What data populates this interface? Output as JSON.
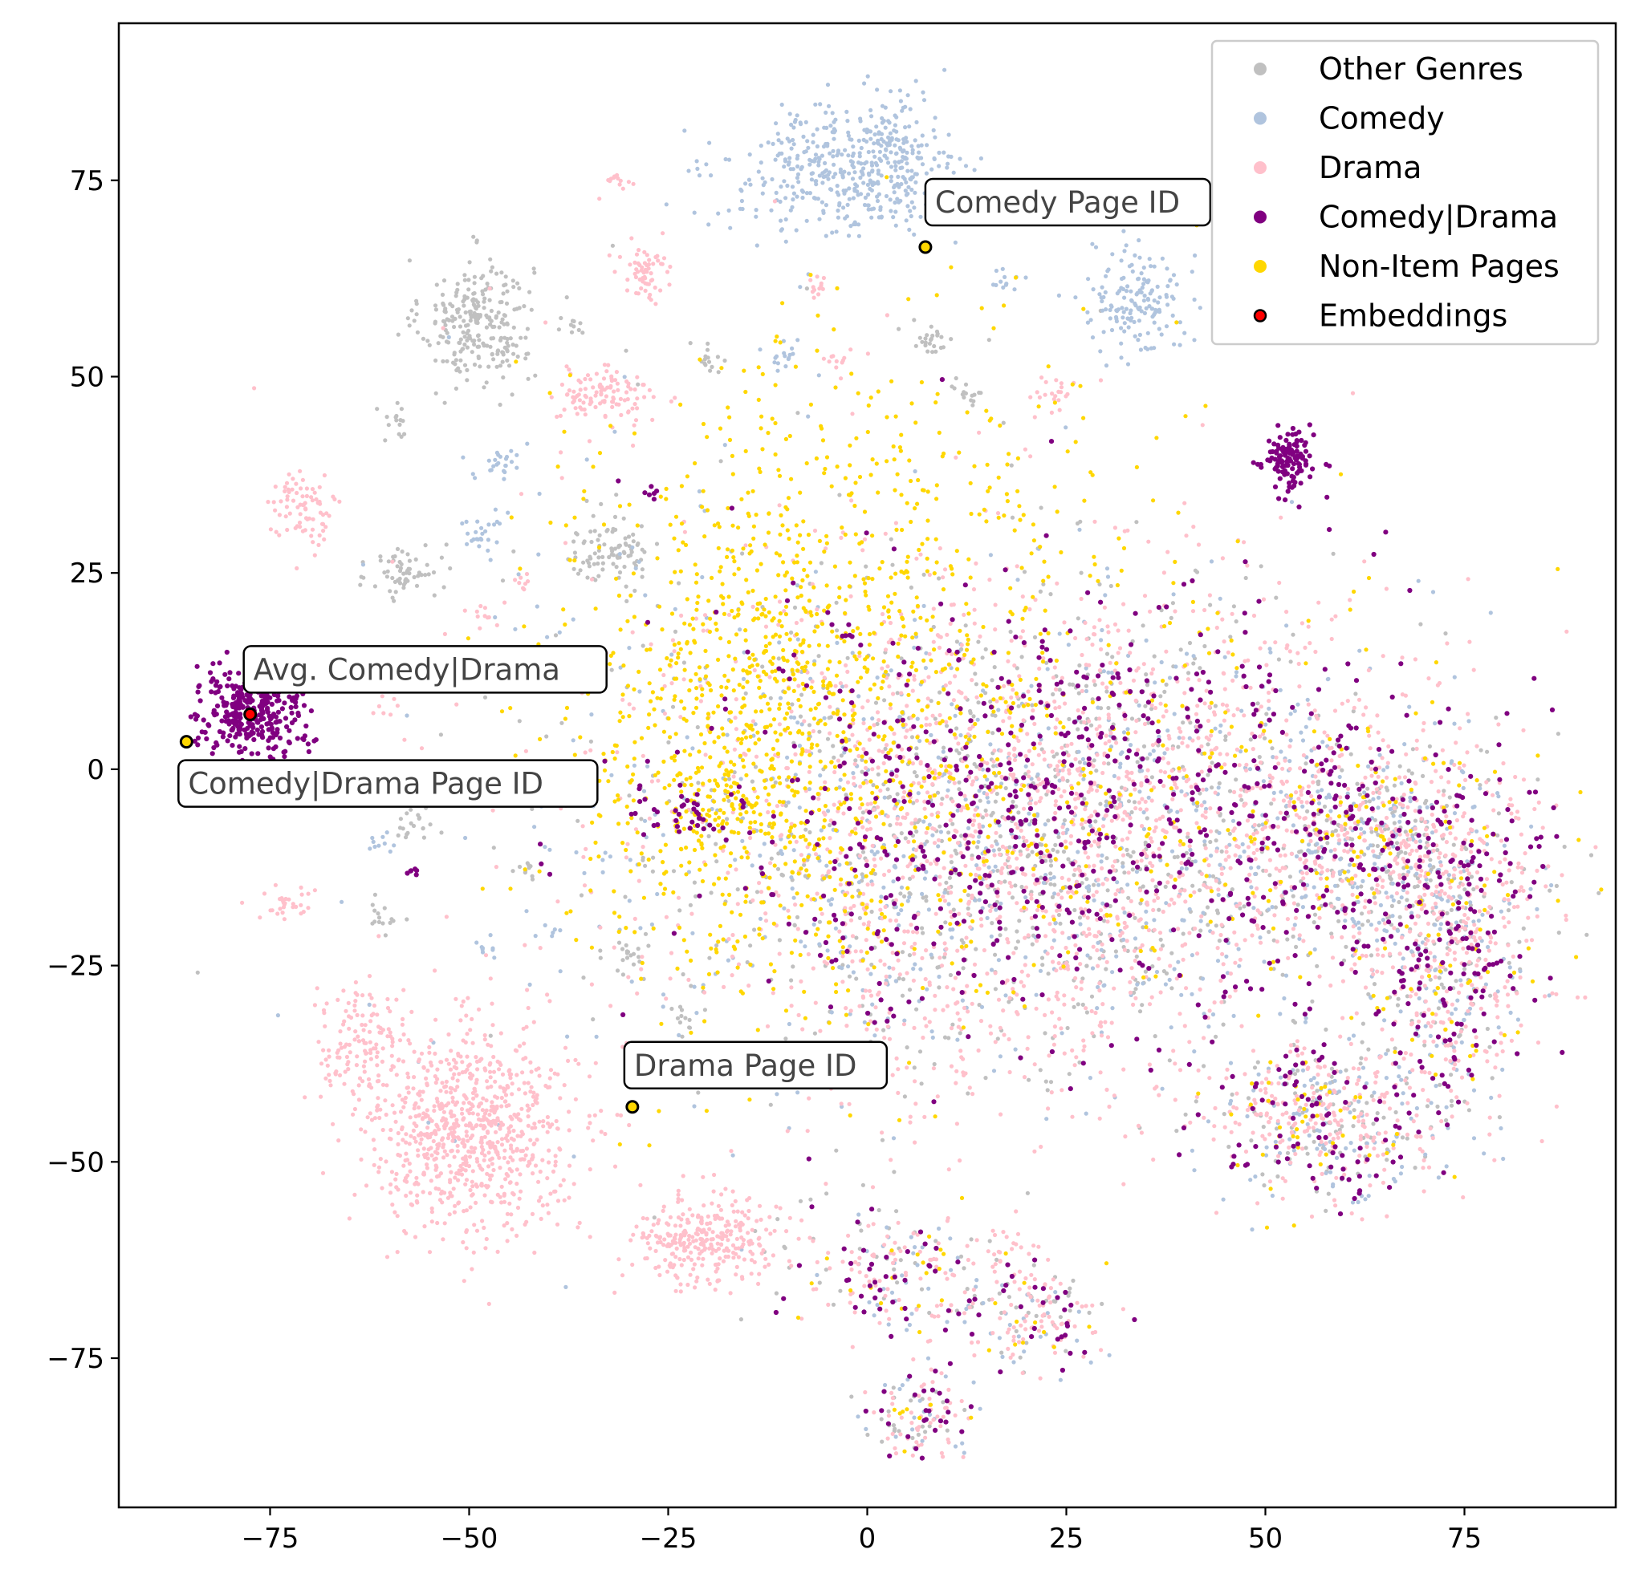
{
  "chart_data": {
    "type": "scatter",
    "title": "",
    "xlabel": "",
    "ylabel": "",
    "xlim": [
      -94,
      94
    ],
    "ylim": [
      -94,
      95
    ],
    "xticks": [
      -75,
      -50,
      -25,
      0,
      25,
      50,
      75
    ],
    "yticks": [
      -75,
      -50,
      -25,
      0,
      25,
      50,
      75
    ],
    "xtick_labels": [
      "−75",
      "−50",
      "−25",
      "0",
      "25",
      "50",
      "75"
    ],
    "ytick_labels": [
      "−75",
      "−50",
      "−25",
      "0",
      "25",
      "50",
      "75"
    ],
    "grid": false,
    "legend_position": "top-right",
    "series": [
      {
        "name": "Other Genres",
        "color": "#c0c0c0",
        "clusters": [
          {
            "center": [
              -49,
              57
            ],
            "spread": [
              3.5,
              4
            ],
            "count": 260
          },
          {
            "center": [
              -58,
              25
            ],
            "spread": [
              2.2,
              1.8
            ],
            "count": 60
          },
          {
            "center": [
              -32,
              28
            ],
            "spread": [
              3,
              2.2
            ],
            "count": 90
          },
          {
            "center": [
              -59,
              44
            ],
            "spread": [
              1,
              1.2
            ],
            "count": 15
          },
          {
            "center": [
              -37,
              56
            ],
            "spread": [
              1,
              0.8
            ],
            "count": 10
          },
          {
            "center": [
              -20,
              52
            ],
            "spread": [
              1.2,
              1.2
            ],
            "count": 15
          },
          {
            "center": [
              8,
              55
            ],
            "spread": [
              1.5,
              1
            ],
            "count": 25
          },
          {
            "center": [
              13,
              48
            ],
            "spread": [
              1,
              1
            ],
            "count": 15
          },
          {
            "center": [
              -57,
              -7
            ],
            "spread": [
              1.2,
              1.2
            ],
            "count": 20
          },
          {
            "center": [
              -61,
              -19
            ],
            "spread": [
              1.2,
              1
            ],
            "count": 15
          },
          {
            "center": [
              -43,
              -13
            ],
            "spread": [
              1,
              0.8
            ],
            "count": 10
          },
          {
            "center": [
              -30,
              -24
            ],
            "spread": [
              1.2,
              1
            ],
            "count": 15
          },
          {
            "center": [
              -23,
              -32
            ],
            "spread": [
              1,
              1
            ],
            "count": 10
          },
          {
            "center": [
              25,
              -8
            ],
            "spread": [
              24,
              14
            ],
            "count": 650
          },
          {
            "center": [
              20,
              -8
            ],
            "spread": [
              14,
              20
            ],
            "count": 180
          },
          {
            "center": [
              65,
              -10
            ],
            "spread": [
              8,
              6
            ],
            "count": 120
          },
          {
            "center": [
              72,
              -25
            ],
            "spread": [
              6,
              10
            ],
            "count": 110
          },
          {
            "center": [
              57,
              -45
            ],
            "spread": [
              7,
              5
            ],
            "count": 80
          },
          {
            "center": [
              -20,
              0
            ],
            "spread": [
              20,
              26
            ],
            "count": 120
          },
          {
            "center": [
              0,
              -62
            ],
            "spread": [
              8,
              5
            ],
            "count": 40
          },
          {
            "center": [
              20,
              -70
            ],
            "spread": [
              6,
              4
            ],
            "count": 35
          },
          {
            "center": [
              6,
              -82
            ],
            "spread": [
              3.5,
              3
            ],
            "count": 25
          }
        ]
      },
      {
        "name": "Comedy",
        "color": "#b0c4de",
        "clusters": [
          {
            "center": [
              -4,
              76
            ],
            "spread": [
              7,
              4
            ],
            "count": 360
          },
          {
            "center": [
              4,
              78
            ],
            "spread": [
              3,
              4
            ],
            "count": 130
          },
          {
            "center": [
              34,
              60
            ],
            "spread": [
              3,
              3.5
            ],
            "count": 160
          },
          {
            "center": [
              -46,
              39
            ],
            "spread": [
              1.5,
              1.2
            ],
            "count": 25
          },
          {
            "center": [
              -48,
              30
            ],
            "spread": [
              1.5,
              1.5
            ],
            "count": 25
          },
          {
            "center": [
              -11,
              53
            ],
            "spread": [
              1.2,
              1
            ],
            "count": 15
          },
          {
            "center": [
              17,
              62
            ],
            "spread": [
              1.2,
              0.8
            ],
            "count": 12
          },
          {
            "center": [
              -62,
              -9
            ],
            "spread": [
              1,
              1
            ],
            "count": 10
          },
          {
            "center": [
              -48,
              -23
            ],
            "spread": [
              0.8,
              1
            ],
            "count": 8
          },
          {
            "center": [
              -40,
              -21
            ],
            "spread": [
              0.8,
              0.8
            ],
            "count": 6
          },
          {
            "center": [
              23,
              -8
            ],
            "spread": [
              24,
              14
            ],
            "count": 650
          },
          {
            "center": [
              65,
              -10
            ],
            "spread": [
              8,
              6
            ],
            "count": 120
          },
          {
            "center": [
              72,
              -25
            ],
            "spread": [
              6,
              10
            ],
            "count": 130
          },
          {
            "center": [
              57,
              -45
            ],
            "spread": [
              7,
              5
            ],
            "count": 100
          },
          {
            "center": [
              -20,
              0
            ],
            "spread": [
              20,
              26
            ],
            "count": 140
          },
          {
            "center": [
              5,
              -64
            ],
            "spread": [
              6,
              4
            ],
            "count": 35
          },
          {
            "center": [
              21,
              -70
            ],
            "spread": [
              5,
              3
            ],
            "count": 25
          },
          {
            "center": [
              7,
              -82
            ],
            "spread": [
              3.5,
              3
            ],
            "count": 20
          }
        ]
      },
      {
        "name": "Drama",
        "color": "#ffc0cb",
        "clusters": [
          {
            "center": [
              -50,
              -46
            ],
            "spread": [
              6.5,
              6.5
            ],
            "count": 820
          },
          {
            "center": [
              -20,
              -60
            ],
            "spread": [
              4.5,
              2.8
            ],
            "count": 300
          },
          {
            "center": [
              -64,
              -35
            ],
            "spread": [
              2.5,
              4
            ],
            "count": 120
          },
          {
            "center": [
              -71,
              33
            ],
            "spread": [
              2,
              2.5
            ],
            "count": 80
          },
          {
            "center": [
              -33,
              48
            ],
            "spread": [
              3,
              1.7
            ],
            "count": 110
          },
          {
            "center": [
              -28,
              63
            ],
            "spread": [
              1.8,
              1.7
            ],
            "count": 60
          },
          {
            "center": [
              -73,
              -17
            ],
            "spread": [
              1.5,
              1.5
            ],
            "count": 30
          },
          {
            "center": [
              -31,
              75
            ],
            "spread": [
              1,
              0.8
            ],
            "count": 12
          },
          {
            "center": [
              -6,
              61
            ],
            "spread": [
              1,
              1
            ],
            "count": 12
          },
          {
            "center": [
              23,
              48
            ],
            "spread": [
              1.5,
              1.2
            ],
            "count": 20
          },
          {
            "center": [
              -3,
              52
            ],
            "spread": [
              1.2,
              1
            ],
            "count": 12
          },
          {
            "center": [
              -48,
              20
            ],
            "spread": [
              1,
              1
            ],
            "count": 10
          },
          {
            "center": [
              -43,
              24
            ],
            "spread": [
              0.8,
              0.8
            ],
            "count": 8
          },
          {
            "center": [
              -61,
              8
            ],
            "spread": [
              1,
              1
            ],
            "count": 8
          },
          {
            "center": [
              25,
              -5
            ],
            "spread": [
              24,
              15
            ],
            "count": 1350
          },
          {
            "center": [
              15,
              -20
            ],
            "spread": [
              14,
              14
            ],
            "count": 300
          },
          {
            "center": [
              65,
              -8
            ],
            "spread": [
              9,
              6
            ],
            "count": 260
          },
          {
            "center": [
              73,
              -25
            ],
            "spread": [
              6,
              10
            ],
            "count": 270
          },
          {
            "center": [
              57,
              -45
            ],
            "spread": [
              7,
              5
            ],
            "count": 220
          },
          {
            "center": [
              -20,
              0
            ],
            "spread": [
              22,
              26
            ],
            "count": 180
          },
          {
            "center": [
              3,
              -64
            ],
            "spread": [
              6,
              4
            ],
            "count": 90
          },
          {
            "center": [
              21,
              -70
            ],
            "spread": [
              5,
              3
            ],
            "count": 70
          },
          {
            "center": [
              7,
              -82
            ],
            "spread": [
              3.5,
              3
            ],
            "count": 50
          },
          {
            "center": [
              18,
              -62
            ],
            "spread": [
              2,
              2
            ],
            "count": 25
          }
        ]
      },
      {
        "name": "Non-Item Pages",
        "color": "#ffd700",
        "clusters": [
          {
            "center": [
              -13,
              5
            ],
            "spread": [
              13,
              18
            ],
            "count": 950
          },
          {
            "center": [
              -18,
              -5
            ],
            "spread": [
              4,
              3
            ],
            "count": 70
          },
          {
            "center": [
              0,
              30
            ],
            "spread": [
              18,
              16
            ],
            "count": 300
          },
          {
            "center": [
              25,
              -5
            ],
            "spread": [
              24,
              14
            ],
            "count": 320
          },
          {
            "center": [
              65,
              -8
            ],
            "spread": [
              9,
              6
            ],
            "count": 60
          },
          {
            "center": [
              72,
              -25
            ],
            "spread": [
              6,
              10
            ],
            "count": 50
          },
          {
            "center": [
              57,
              -45
            ],
            "spread": [
              7,
              5
            ],
            "count": 40
          },
          {
            "center": [
              5,
              -64
            ],
            "spread": [
              6,
              4
            ],
            "count": 20
          },
          {
            "center": [
              21,
              -70
            ],
            "spread": [
              5,
              3
            ],
            "count": 12
          },
          {
            "center": [
              7,
              -82
            ],
            "spread": [
              3.5,
              3
            ],
            "count": 8
          }
        ]
      },
      {
        "name": "Comedy|Drama",
        "color": "#800080",
        "clusters": [
          {
            "center": [
              -77,
              7
            ],
            "spread": [
              3.5,
              3
            ],
            "count": 320
          },
          {
            "center": [
              53,
              39
            ],
            "spread": [
              1.8,
              2
            ],
            "count": 120
          },
          {
            "center": [
              -24,
              -6
            ],
            "spread": [
              3,
              1.8
            ],
            "count": 35
          },
          {
            "center": [
              -27,
              35
            ],
            "spread": [
              0.5,
              0.6
            ],
            "count": 6
          },
          {
            "center": [
              -57,
              -13
            ],
            "spread": [
              0.7,
              0.3
            ],
            "count": 6
          },
          {
            "center": [
              25,
              -5
            ],
            "spread": [
              23,
              14
            ],
            "count": 700
          },
          {
            "center": [
              65,
              -8
            ],
            "spread": [
              9,
              6
            ],
            "count": 110
          },
          {
            "center": [
              73,
              -25
            ],
            "spread": [
              6,
              10
            ],
            "count": 130
          },
          {
            "center": [
              57,
              -45
            ],
            "spread": [
              7,
              5
            ],
            "count": 90
          },
          {
            "center": [
              3,
              -64
            ],
            "spread": [
              6,
              4
            ],
            "count": 40
          },
          {
            "center": [
              21,
              -70
            ],
            "spread": [
              5,
              3
            ],
            "count": 30
          },
          {
            "center": [
              7,
              -82
            ],
            "spread": [
              3.5,
              3
            ],
            "count": 25
          }
        ]
      }
    ],
    "embeddings": [
      {
        "label": "Comedy Page ID",
        "x": 7.3,
        "y": 66.5,
        "fill": "#ffd700",
        "box": true
      },
      {
        "label": "Avg. Comedy|Drama",
        "x": -77.5,
        "y": 7,
        "fill": "#ff0000",
        "box": true
      },
      {
        "label": "Comedy|Drama Page ID",
        "x": -85.5,
        "y": 3.5,
        "fill": "#ffd700",
        "box": true
      },
      {
        "label": "Drama Page ID",
        "x": -29.5,
        "y": -43,
        "fill": "#ffd700",
        "box": true
      }
    ],
    "legend": [
      {
        "label": "Other Genres",
        "color": "#c0c0c0",
        "edge": ""
      },
      {
        "label": "Comedy",
        "color": "#b0c4de",
        "edge": ""
      },
      {
        "label": "Drama",
        "color": "#ffc0cb",
        "edge": ""
      },
      {
        "label": "Comedy|Drama",
        "color": "#800080",
        "edge": ""
      },
      {
        "label": "Non-Item Pages",
        "color": "#ffd700",
        "edge": ""
      },
      {
        "label": "Embeddings",
        "color": "#ff0000",
        "edge": "#000000"
      }
    ]
  }
}
